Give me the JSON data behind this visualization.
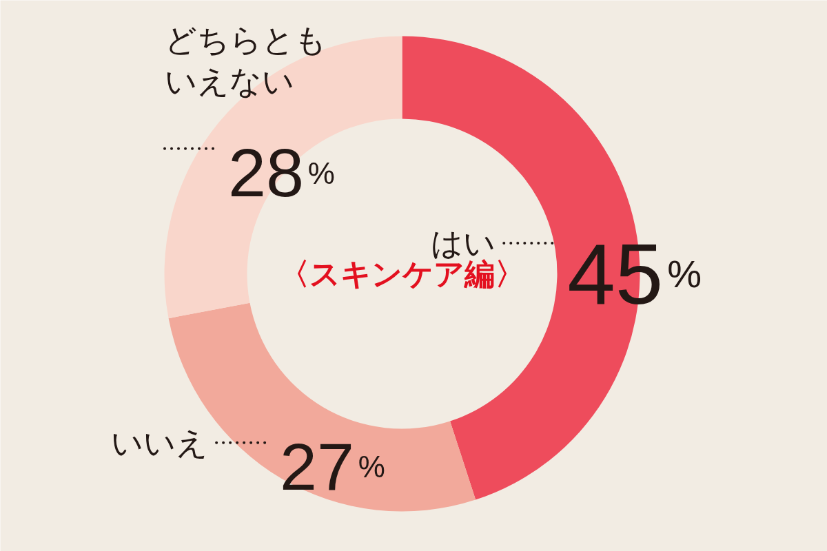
{
  "chart_data": {
    "type": "donut",
    "title": "〈スキンケア編〉",
    "categories": [
      "はい",
      "いいえ",
      "どちらともいえない"
    ],
    "values": [
      45,
      27,
      28
    ],
    "colors": [
      "#ee4c5c",
      "#f2a99b",
      "#f9d6cb"
    ],
    "value_labels": [
      "45%",
      "27%",
      "28%"
    ]
  }
}
